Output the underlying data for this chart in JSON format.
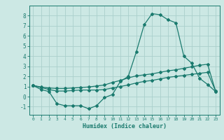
{
  "xlabel": "Humidex (Indice chaleur)",
  "background_color": "#cce8e4",
  "grid_color": "#aacfcc",
  "line_color": "#1a7a6e",
  "xlim": [
    -0.5,
    23.5
  ],
  "ylim": [
    -1.8,
    9.0
  ],
  "yticks": [
    -1,
    0,
    1,
    2,
    3,
    4,
    5,
    6,
    7,
    8
  ],
  "xticks": [
    0,
    1,
    2,
    3,
    4,
    5,
    6,
    7,
    8,
    9,
    10,
    11,
    12,
    13,
    14,
    15,
    16,
    17,
    18,
    19,
    20,
    21,
    22,
    23
  ],
  "series1_x": [
    0,
    1,
    2,
    3,
    4,
    5,
    6,
    7,
    8,
    9,
    10,
    11,
    12,
    13,
    14,
    15,
    16,
    17,
    18,
    19,
    20,
    21,
    22,
    23
  ],
  "series1_y": [
    1.1,
    0.7,
    0.5,
    -0.7,
    -0.9,
    -0.9,
    -0.9,
    -1.2,
    -0.9,
    -0.1,
    0.2,
    1.5,
    2.0,
    4.4,
    7.1,
    8.2,
    8.1,
    7.6,
    7.3,
    4.0,
    3.3,
    1.8,
    1.2,
    0.5
  ],
  "series2_x": [
    0,
    1,
    2,
    3,
    4,
    5,
    6,
    7,
    8,
    9,
    10,
    11,
    12,
    13,
    14,
    15,
    16,
    17,
    18,
    19,
    20,
    21,
    22,
    23
  ],
  "series2_y": [
    1.1,
    0.95,
    0.85,
    0.8,
    0.8,
    0.85,
    0.9,
    0.95,
    1.05,
    1.15,
    1.4,
    1.6,
    1.85,
    2.05,
    2.15,
    2.25,
    2.4,
    2.55,
    2.65,
    2.8,
    2.95,
    3.1,
    3.2,
    0.55
  ],
  "series3_x": [
    0,
    1,
    2,
    3,
    4,
    5,
    6,
    7,
    8,
    9,
    10,
    11,
    12,
    13,
    14,
    15,
    16,
    17,
    18,
    19,
    20,
    21,
    22,
    23
  ],
  "series3_y": [
    1.1,
    0.9,
    0.7,
    0.55,
    0.55,
    0.6,
    0.65,
    0.65,
    0.65,
    0.7,
    0.85,
    1.0,
    1.15,
    1.35,
    1.5,
    1.6,
    1.75,
    1.9,
    2.0,
    2.1,
    2.2,
    2.3,
    2.4,
    0.55
  ]
}
